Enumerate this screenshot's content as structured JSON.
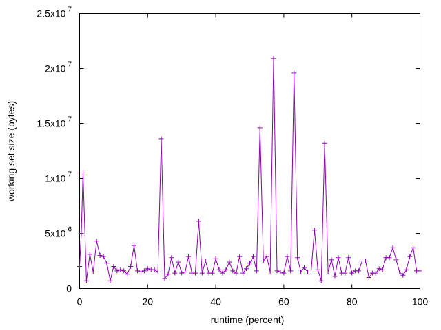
{
  "chart_data": {
    "type": "line",
    "title": "",
    "xlabel": "runtime (percent)",
    "ylabel": "working set size (bytes)",
    "xlim": [
      0,
      100
    ],
    "ylim": [
      0,
      25000000
    ],
    "grid": false,
    "legend": "none",
    "color": "#8b00b0",
    "x_ticks": [
      {
        "value": 0,
        "label": "0"
      },
      {
        "value": 20,
        "label": "20"
      },
      {
        "value": 40,
        "label": "40"
      },
      {
        "value": 60,
        "label": "60"
      },
      {
        "value": 80,
        "label": "80"
      },
      {
        "value": 100,
        "label": "100"
      }
    ],
    "y_ticks": [
      {
        "value": 0,
        "mant": "0",
        "exp": ""
      },
      {
        "value": 5000000,
        "mant": "5x10",
        "exp": "6"
      },
      {
        "value": 10000000,
        "mant": "1x10",
        "exp": "7"
      },
      {
        "value": 15000000,
        "mant": "1.5x10",
        "exp": "7"
      },
      {
        "value": 20000000,
        "mant": "2x10",
        "exp": "7"
      },
      {
        "value": 25000000,
        "mant": "2.5x10",
        "exp": "7"
      }
    ],
    "series": [
      {
        "x": [
          0,
          0.5,
          1,
          2,
          3,
          4,
          5,
          6,
          7,
          8,
          9,
          10,
          11,
          12,
          13,
          14,
          15,
          16,
          17,
          18,
          19,
          20,
          21,
          22,
          23,
          24,
          25,
          26,
          27,
          28,
          29,
          30,
          31,
          32,
          33,
          34,
          35,
          36,
          37,
          38,
          39,
          40,
          41,
          42,
          43,
          44,
          45,
          46,
          47,
          48,
          49,
          50,
          51,
          52,
          53,
          54,
          55,
          56,
          57,
          58,
          59,
          60,
          61,
          62,
          63,
          64,
          65,
          66,
          67,
          68,
          69,
          70,
          71,
          72,
          73,
          74,
          75,
          76,
          77,
          78,
          79,
          80,
          81,
          82,
          83,
          84,
          85,
          86,
          87,
          88,
          89,
          90,
          91,
          92,
          93,
          94,
          95,
          96,
          97,
          98,
          99,
          100
        ],
        "y": [
          2000000,
          5000000,
          10500000,
          700000,
          3100000,
          1500000,
          4300000,
          3000000,
          2900000,
          2300000,
          700000,
          2000000,
          1600000,
          1700000,
          1600000,
          1300000,
          2000000,
          3900000,
          1600000,
          1500000,
          1600000,
          1800000,
          1700000,
          1700000,
          1500000,
          13600000,
          900000,
          1300000,
          2800000,
          1400000,
          2400000,
          1400000,
          1500000,
          2900000,
          1400000,
          1400000,
          6100000,
          1400000,
          2500000,
          1400000,
          1400000,
          2700000,
          1700000,
          1400000,
          1700000,
          2400000,
          1600000,
          1400000,
          2900000,
          1400000,
          1800000,
          2300000,
          2900000,
          1600000,
          14600000,
          2500000,
          2900000,
          1500000,
          20900000,
          1600000,
          1500000,
          1400000,
          2900000,
          1600000,
          19600000,
          2800000,
          1500000,
          1900000,
          1500000,
          1500000,
          5300000,
          1700000,
          700000,
          13200000,
          1500000,
          2600000,
          1100000,
          2800000,
          1400000,
          1400000,
          2800000,
          1400000,
          1600000,
          1600000,
          2500000,
          2500000,
          1000000,
          1400000,
          1400000,
          1800000,
          1700000,
          2800000,
          2800000,
          3700000,
          2600000,
          1500000,
          1200000,
          1700000,
          2900000,
          3700000,
          1600000,
          1600000
        ]
      }
    ]
  }
}
